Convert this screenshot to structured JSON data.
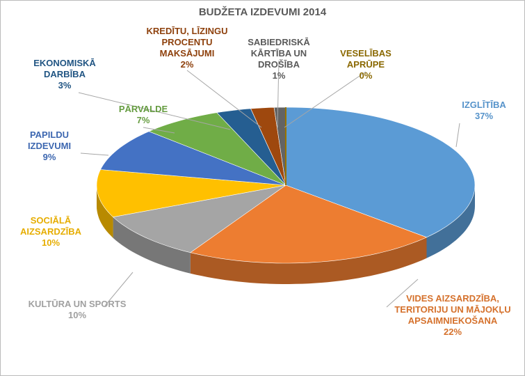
{
  "chart_data": {
    "type": "pie3d",
    "title": "BUDŽETA IZDEVUMI 2014",
    "categories": [
      "IZGLĪTĪBA",
      "VIDES AIZSARDZĪBA, TERITORIJU UN MĀJOKĻU APSAIMNIEKOŠANA",
      "KULTŪRA UN SPORTS",
      "SOCIĀLĀ AIZSARDZĪBA",
      "PAPILDU IZDEVUMI",
      "PĀRVALDE",
      "EKONOMISKĀ DARBĪBA",
      "KREDĪTU, LĪZINGU PROCENTU MAKSĀJUMI",
      "SABIEDRISKĀ KĀRTĪBA UN DROŠĪBA",
      "VESELĪBAS APRŪPE"
    ],
    "values": [
      37,
      22,
      10,
      10,
      9,
      7,
      3,
      2,
      1,
      0
    ],
    "value_labels": [
      "37%",
      "22%",
      "10%",
      "10%",
      "9%",
      "7%",
      "3%",
      "2%",
      "1%",
      "0%"
    ],
    "colors": [
      "#5b9bd5",
      "#ed7d31",
      "#a5a5a5",
      "#ffc000",
      "#4472c4",
      "#70ad47",
      "#255e91",
      "#9e480e",
      "#636363",
      "#997300"
    ]
  }
}
